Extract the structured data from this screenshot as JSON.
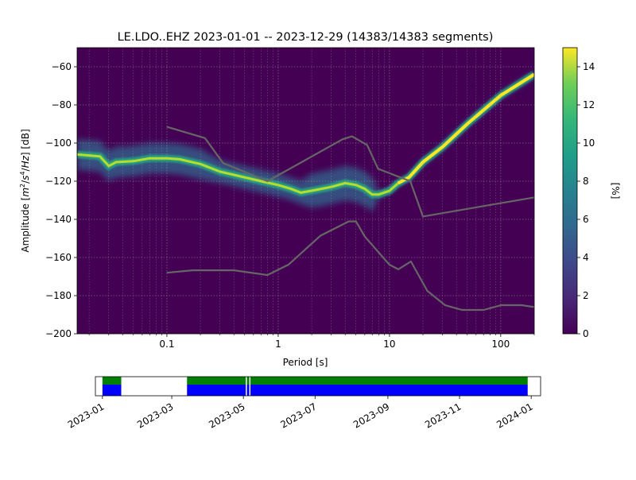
{
  "chart_data": [
    {
      "type": "heatmap",
      "title": "LE.LDO..EHZ   2023-01-01 -- 2023-12-29  (14383/14383 segments)",
      "xlabel": "Period [s]",
      "ylabel_html": "Amplitude [m²/s⁴/Hz] [dB]",
      "ylabel_parts": [
        "Amplitude [",
        "m",
        "2",
        "/",
        "s",
        "4",
        "/",
        "Hz",
        "] [dB]"
      ],
      "x_scale": "log",
      "xlim": [
        0.0156,
        200
      ],
      "ylim": [
        -200,
        -50
      ],
      "x_ticks": [
        0.1,
        1,
        10,
        100
      ],
      "x_tick_labels": [
        "0.1",
        "1",
        "10",
        "100"
      ],
      "y_ticks": [
        -200,
        -180,
        -160,
        -140,
        -120,
        -100,
        -80,
        -60
      ],
      "y_tick_labels": [
        "−200",
        "−180",
        "−160",
        "−140",
        "−120",
        "−100",
        "−80",
        "−60"
      ],
      "grid": true,
      "colormap": "viridis",
      "colorbar": {
        "label": "[%]",
        "range": [
          0,
          15
        ],
        "ticks": [
          0,
          2,
          4,
          6,
          8,
          10,
          12,
          14
        ],
        "tick_labels": [
          "0",
          "2",
          "4",
          "6",
          "8",
          "10",
          "12",
          "14"
        ]
      },
      "mode_curve": {
        "period": [
          0.0156,
          0.02,
          0.025,
          0.03,
          0.035,
          0.05,
          0.07,
          0.1,
          0.13,
          0.2,
          0.3,
          0.5,
          0.7,
          1.0,
          1.3,
          1.6,
          2.0,
          3.0,
          4.0,
          5.0,
          6.0,
          7.0,
          8.0,
          10.0,
          12.0,
          15.0,
          20.0,
          30.0,
          50.0,
          100.0,
          200.0
        ],
        "db": [
          -106,
          -106.5,
          -107,
          -112,
          -110,
          -109.5,
          -108,
          -108,
          -108.5,
          -111,
          -115,
          -118,
          -120,
          -122,
          -124,
          -126,
          -125,
          -123,
          -121,
          -122,
          -124,
          -127,
          -127,
          -125,
          -121,
          -118,
          -110,
          -102,
          -90,
          -75,
          -64
        ]
      },
      "nlnm": {
        "period": [
          0.1,
          0.17,
          0.4,
          0.8,
          1.24,
          2.4,
          4.3,
          5.0,
          6.0,
          10.0,
          12.0,
          15.6,
          21.9,
          31.6,
          45.0,
          70.0,
          101.0,
          154.0,
          200.0
        ],
        "db": [
          -168,
          -166.7,
          -166.7,
          -169.2,
          -163.7,
          -148.6,
          -141.1,
          -141.1,
          -149.0,
          -163.8,
          -166.2,
          -162.1,
          -177.5,
          -185.0,
          -187.5,
          -187.5,
          -185.0,
          -185.0,
          -186.0
        ]
      },
      "nhnm": {
        "period": [
          0.1,
          0.22,
          0.32,
          0.8,
          3.8,
          4.6,
          6.3,
          7.9,
          15.4,
          20.0,
          200.0
        ],
        "db": [
          -91.5,
          -97.4,
          -110.5,
          -120.0,
          -98.0,
          -96.5,
          -101.0,
          -113.5,
          -120.0,
          -138.5,
          -128.5
        ]
      }
    },
    {
      "type": "timeline",
      "x_tick_labels": [
        "2023-01",
        "2023-03",
        "2023-05",
        "2023-07",
        "2023-09",
        "2023-11",
        "2024-01"
      ],
      "x_tick_dates": [
        "2023-01-01",
        "2023-03-01",
        "2023-05-01",
        "2023-07-01",
        "2023-09-01",
        "2023-11-01",
        "2024-01-01"
      ],
      "xlim": [
        "2022-12-26",
        "2024-01-09"
      ],
      "coverage_intervals": [
        [
          "2023-01-01",
          "2023-01-17"
        ],
        [
          "2023-03-14",
          "2023-05-03"
        ],
        [
          "2023-05-04",
          "2023-05-06"
        ],
        [
          "2023-05-07",
          "2023-12-29"
        ]
      ],
      "colors": {
        "data": "#0000ff",
        "used": "#008000"
      }
    }
  ]
}
